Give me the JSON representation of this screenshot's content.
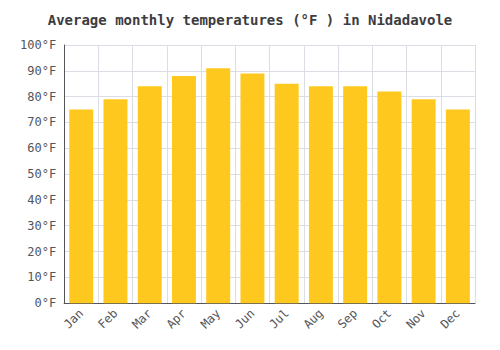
{
  "chart_data": {
    "type": "bar",
    "title": "Average monthly temperatures (°F ) in Nidadavole",
    "categories": [
      "Jan",
      "Feb",
      "Mar",
      "Apr",
      "May",
      "Jun",
      "Jul",
      "Aug",
      "Sep",
      "Oct",
      "Nov",
      "Dec"
    ],
    "values": [
      75,
      79,
      84,
      88,
      91,
      89,
      85,
      84,
      84,
      82,
      79,
      75
    ],
    "color": "#FFC81E",
    "ylim": [
      0,
      100
    ],
    "yticks": [
      {
        "value": 0,
        "label": "0°F"
      },
      {
        "value": 10,
        "label": "10°F"
      },
      {
        "value": 20,
        "label": "20°F"
      },
      {
        "value": 30,
        "label": "30°F"
      },
      {
        "value": 40,
        "label": "40°F"
      },
      {
        "value": 50,
        "label": "50°F"
      },
      {
        "value": 60,
        "label": "60°F"
      },
      {
        "value": 70,
        "label": "70°F"
      },
      {
        "value": 80,
        "label": "80°F"
      },
      {
        "value": 90,
        "label": "90°F"
      },
      {
        "value": 100,
        "label": "100°F"
      }
    ],
    "grid": true
  }
}
